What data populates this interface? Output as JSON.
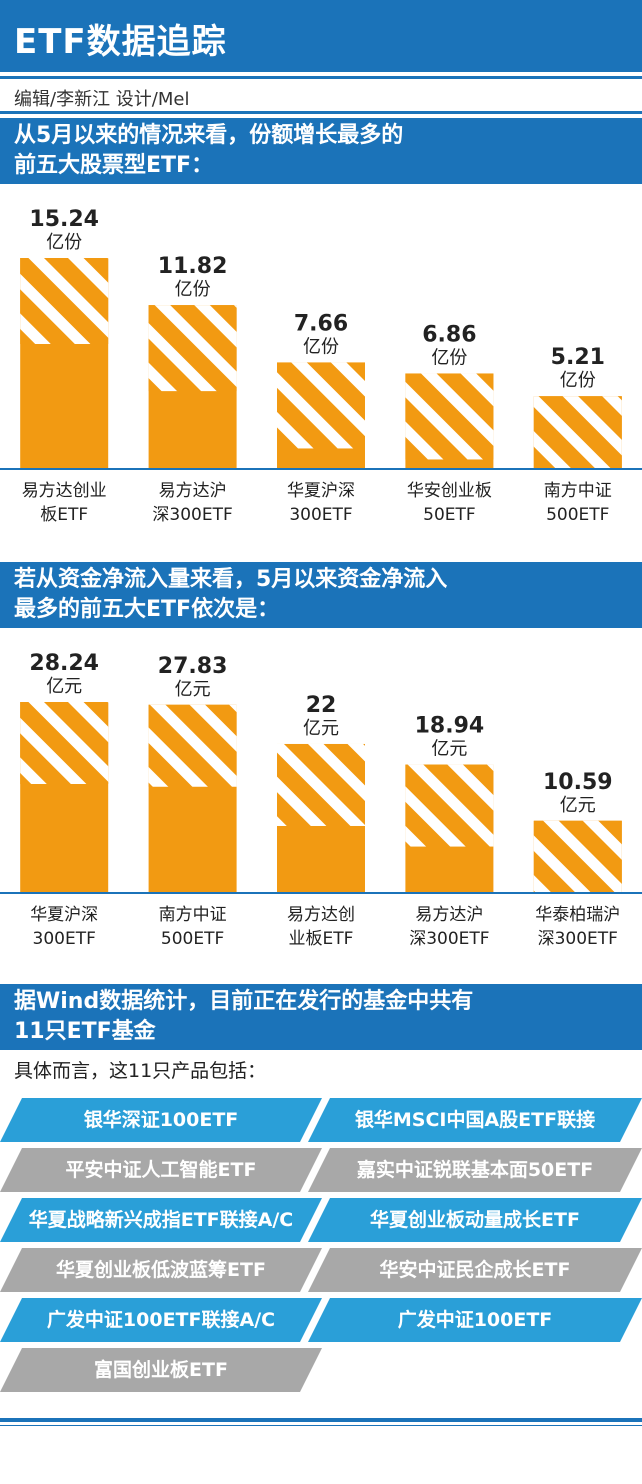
{
  "header": {
    "title": "ETF数据追踪",
    "credits": "编辑/李新江  设计/Mel"
  },
  "section1": {
    "heading_line1": "从5月以来的情况来看，份额增长最多的",
    "heading_line2": "前五大股票型ETF："
  },
  "section2": {
    "heading_line1": "若从资金净流入量来看，5月以来资金净流入",
    "heading_line2": "最多的前五大ETF依次是："
  },
  "section3": {
    "heading_line1": "据Wind数据统计，目前正在发行的基金中共有",
    "heading_line2": "11只ETF基金",
    "intro": "具体而言，这11只产品包括：",
    "funds": [
      {
        "name": "银华深证100ETF",
        "color": "blue"
      },
      {
        "name": "银华MSCI中国A股ETF联接",
        "color": "blue"
      },
      {
        "name": "平安中证人工智能ETF",
        "color": "gray"
      },
      {
        "name": "嘉实中证锐联基本面50ETF",
        "color": "gray"
      },
      {
        "name": "华夏战略新兴成指ETF联接A/C",
        "color": "blue"
      },
      {
        "name": "华夏创业板动量成长ETF",
        "color": "blue"
      },
      {
        "name": "华夏创业板低波蓝筹ETF",
        "color": "gray"
      },
      {
        "name": "华安中证民企成长ETF",
        "color": "gray"
      },
      {
        "name": "广发中证100ETF联接A/C",
        "color": "blue"
      },
      {
        "name": "广发中证100ETF",
        "color": "blue"
      },
      {
        "name": "富国创业板ETF",
        "color": "gray"
      }
    ]
  },
  "colors": {
    "brand_blue": "#1b73b9",
    "bar_orange": "#f29a12",
    "item_blue": "#2a9fd8",
    "item_gray": "#a8a8a8"
  },
  "chart_data": [
    {
      "type": "bar",
      "categories": [
        "易方达创业板ETF",
        "易方达沪深300ETF",
        "华夏沪深300ETF",
        "华安创业板50ETF",
        "南方中证500ETF"
      ],
      "category_lines": [
        [
          "易方达创业",
          "板ETF"
        ],
        [
          "易方达沪",
          "深300ETF"
        ],
        [
          "华夏沪深",
          "300ETF"
        ],
        [
          "华安创业板",
          "50ETF"
        ],
        [
          "南方中证",
          "500ETF"
        ]
      ],
      "values": [
        15.24,
        11.82,
        7.66,
        6.86,
        5.21
      ],
      "value_labels": [
        "15.24",
        "11.82",
        "7.66",
        "6.86",
        "5.21"
      ],
      "unit": "亿份",
      "ylim": [
        0,
        15.24
      ]
    },
    {
      "type": "bar",
      "categories": [
        "华夏沪深300ETF",
        "南方中证500ETF",
        "易方达创业板ETF",
        "易方达沪深300ETF",
        "华泰柏瑞沪深300ETF"
      ],
      "category_lines": [
        [
          "华夏沪深",
          "300ETF"
        ],
        [
          "南方中证",
          "500ETF"
        ],
        [
          "易方达创",
          "业板ETF"
        ],
        [
          "易方达沪",
          "深300ETF"
        ],
        [
          "华泰柏瑞沪",
          "深300ETF"
        ]
      ],
      "values": [
        28.24,
        27.83,
        22,
        18.94,
        10.59
      ],
      "value_labels": [
        "28.24",
        "27.83",
        "22",
        "18.94",
        "10.59"
      ],
      "unit": "亿元",
      "ylim": [
        0,
        28.24
      ]
    }
  ]
}
